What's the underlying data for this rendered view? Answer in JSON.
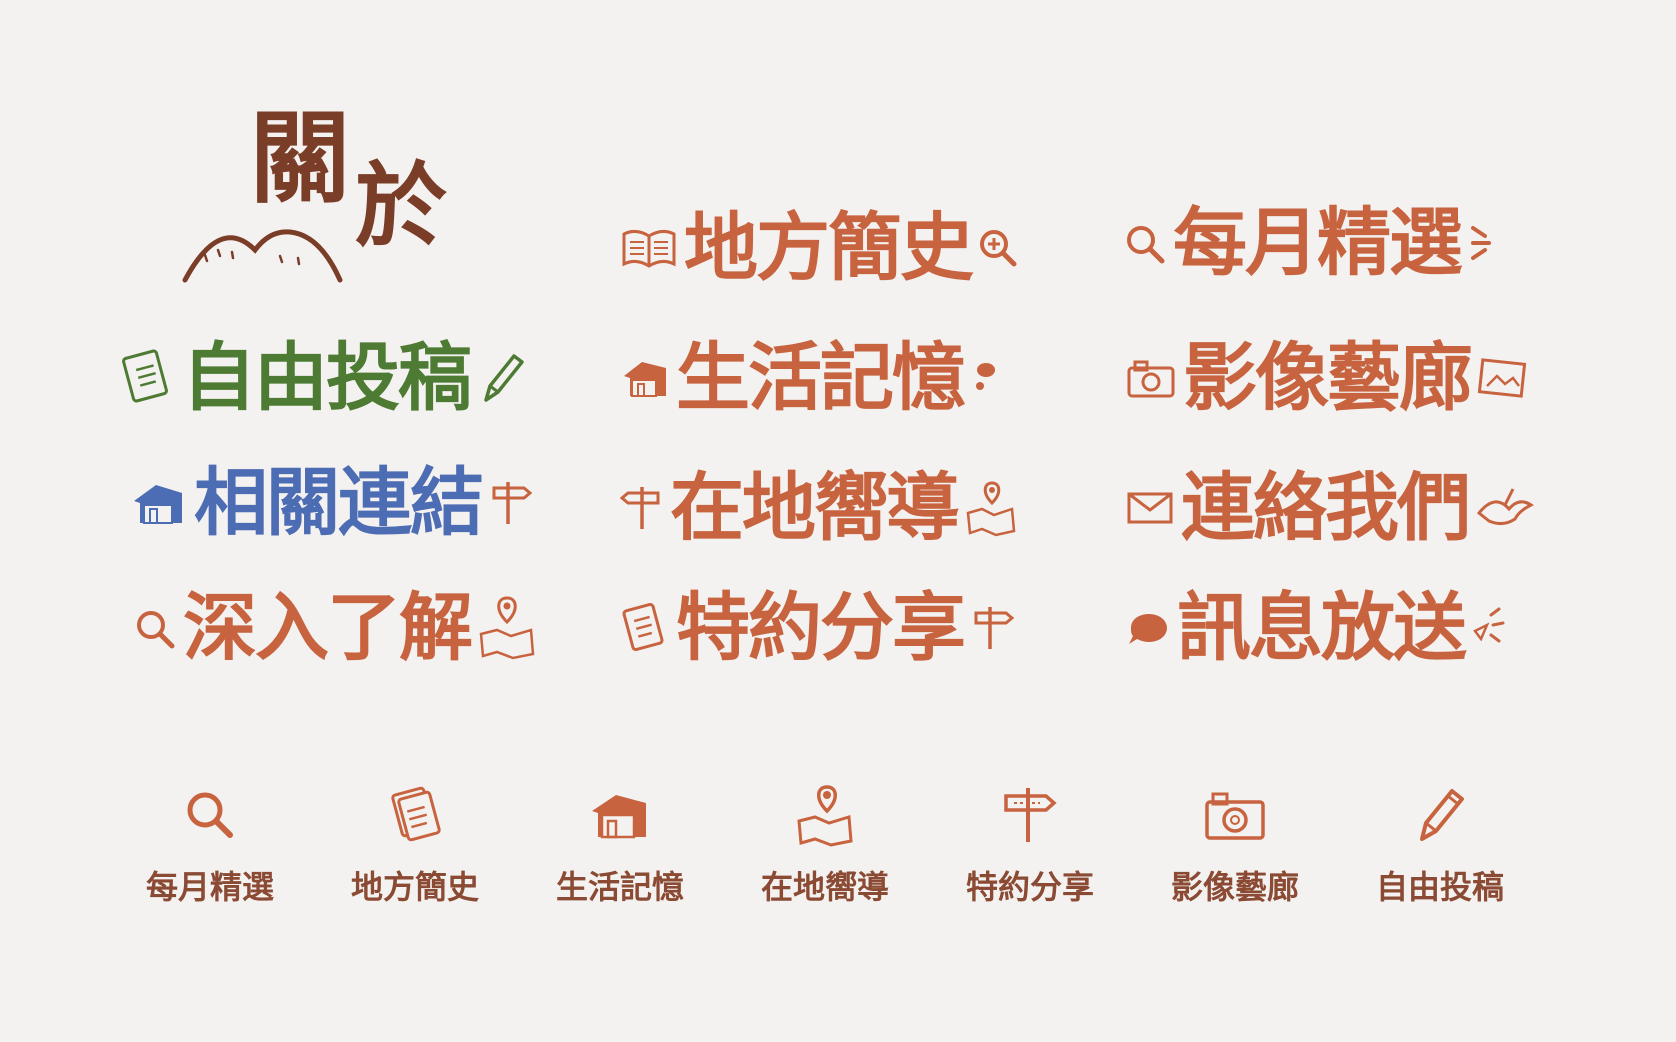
{
  "colors": {
    "background": "#f4f2f0",
    "title": "#7a3d28",
    "orange": "#c8633f",
    "green": "#4d7b33",
    "blue": "#4c6cb3",
    "legend_text": "#8a4a33",
    "legend_icon": "#c8633f"
  },
  "title": {
    "char1": "關",
    "char2": "於",
    "icon": "mountains-icon"
  },
  "labels": [
    {
      "text": "地方簡史",
      "icons": [
        "book-icon",
        "search-plus-icon"
      ]
    },
    {
      "text": "每月精選",
      "icons": [
        "search-icon",
        "sparkle-icon"
      ]
    },
    {
      "text": "自由投稿",
      "icons": [
        "notepad-icon",
        "pencil-icon"
      ]
    },
    {
      "text": "生活記憶",
      "icons": [
        "house-icon",
        "speech-bubble-icon"
      ]
    },
    {
      "text": "影像藝廊",
      "icons": [
        "camera-icon",
        "picture-icon"
      ]
    },
    {
      "text": "相關連結",
      "icons": [
        "house-icon",
        "signpost-icon"
      ]
    },
    {
      "text": "在地嚮導",
      "icons": [
        "signpost-icon",
        "map-pin-icon"
      ]
    },
    {
      "text": "連絡我們",
      "icons": [
        "envelope-icon",
        "bird-icon"
      ]
    },
    {
      "text": "深入了解",
      "icons": [
        "search-icon",
        "map-pin-icon"
      ]
    },
    {
      "text": "特約分享",
      "icons": [
        "notepad-icon",
        "signpost-icon"
      ]
    },
    {
      "text": "訊息放送",
      "icons": [
        "speech-bubble-icon",
        "sparkle-icon"
      ]
    }
  ],
  "legend": [
    {
      "icon": "search-icon",
      "label": "每月精選"
    },
    {
      "icon": "notepad-icon",
      "label": "地方簡史"
    },
    {
      "icon": "house-icon",
      "label": "生活記憶"
    },
    {
      "icon": "map-pin-icon",
      "label": "在地嚮導"
    },
    {
      "icon": "signpost-icon",
      "label": "特約分享"
    },
    {
      "icon": "camera-icon",
      "label": "影像藝廊"
    },
    {
      "icon": "pencil-icon",
      "label": "自由投稿"
    }
  ]
}
